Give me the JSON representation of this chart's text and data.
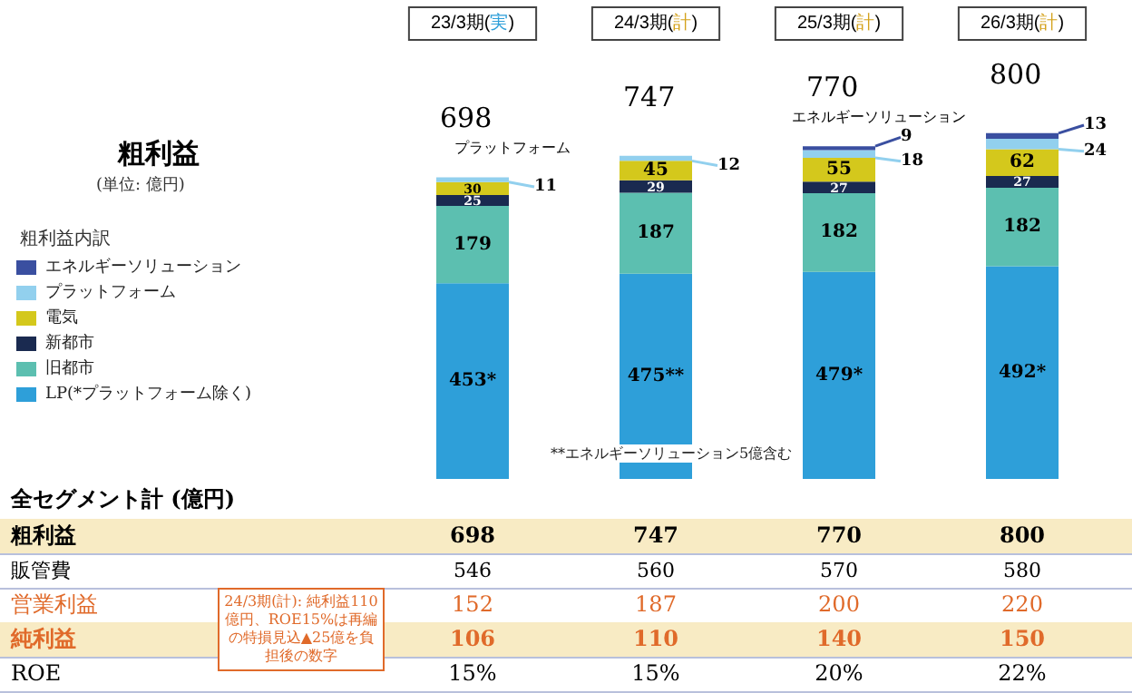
{
  "chart_data": {
    "type": "bar",
    "stacked": true,
    "title": "粗利益",
    "subtitle": "(単位: 億円)",
    "legend_title": "粗利益内訳",
    "legend": "left",
    "categories": [
      "23/3期(実)",
      "24/3期(計)",
      "25/3期(計)",
      "26/3期(計)"
    ],
    "series": [
      {
        "name": "LP(*プラットフォーム除く)",
        "color": "#2e9fd9",
        "values": [
          453,
          475,
          479,
          492
        ],
        "value_labels": [
          "453*",
          "475**",
          "479*",
          "492*"
        ]
      },
      {
        "name": "旧都市",
        "color": "#5cbfb0",
        "values": [
          179,
          187,
          182,
          182
        ],
        "value_labels": [
          "179",
          "187",
          "182",
          "182"
        ]
      },
      {
        "name": "新都市",
        "color": "#1a2a50",
        "values": [
          25,
          29,
          27,
          27
        ],
        "value_labels": [
          "25",
          "29",
          "27",
          "27"
        ]
      },
      {
        "name": "電気",
        "color": "#d4c81c",
        "values": [
          30,
          45,
          55,
          62
        ],
        "value_labels": [
          "30",
          "45",
          "55",
          "62"
        ]
      },
      {
        "name": "プラットフォーム",
        "color": "#92d0ee",
        "values": [
          11,
          12,
          18,
          24
        ],
        "value_labels": [
          "11",
          "12",
          "18",
          "24"
        ]
      },
      {
        "name": "エネルギーソリューション",
        "color": "#3a4fa0",
        "values": [
          null,
          null,
          9,
          13
        ],
        "value_labels": [
          null,
          null,
          "9",
          "13"
        ]
      }
    ],
    "totals": [
      "698",
      "747",
      "770",
      "800"
    ],
    "annotations": [
      "**エネルギーソリューション5億含む",
      "24/3期(計): 純利益110億円、ROE15%は再編の特損見込▲25億を負担後の数字",
      "全セグメント計 (億円)",
      "粗利益",
      "698",
      "747",
      "770",
      "800",
      "販管費",
      "546",
      "560",
      "570",
      "580",
      "営業利益",
      "152",
      "187",
      "200",
      "220",
      "純利益",
      "106",
      "110",
      "140",
      "150",
      "ROE",
      "15%",
      "15%",
      "20%",
      "22%"
    ]
  }
}
